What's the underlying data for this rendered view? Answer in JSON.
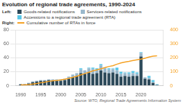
{
  "chart_data": {
    "type": "bar",
    "title": "Evolution of regional trade agreements, 1990-2024",
    "y_label": "Left:",
    "y2_label": "Right:",
    "annotations": [
      "Source: WTO, Regional Trade Agreements Information System"
    ],
    "x": [
      1990,
      1991,
      1992,
      1993,
      1994,
      1995,
      1996,
      1997,
      1998,
      1999,
      2000,
      2001,
      2002,
      2003,
      2004,
      2005,
      2006,
      2007,
      2008,
      2009,
      2010,
      2011,
      2012,
      2013,
      2014,
      2015,
      2016,
      2017,
      2018,
      2019,
      2020,
      2021,
      2022,
      2023,
      2024
    ],
    "series": [
      {
        "name": "Goods-related notifications",
        "color": "#2d4a5a",
        "values": [
          2,
          2,
          3,
          5,
          6,
          7,
          7,
          8,
          7,
          7,
          7,
          8,
          10,
          12,
          14,
          18,
          17,
          19,
          17,
          18,
          22,
          19,
          18,
          19,
          17,
          13,
          14,
          13,
          14,
          14,
          42,
          10,
          9,
          4,
          1
        ]
      },
      {
        "name": "Services-related notifications",
        "color": "#9ab8cc",
        "values": [
          0,
          0,
          1,
          1,
          1,
          1,
          1,
          1,
          2,
          2,
          2,
          2,
          3,
          4,
          4,
          5,
          5,
          6,
          7,
          5,
          7,
          6,
          5,
          5,
          5,
          4,
          4,
          4,
          4,
          3,
          5,
          2,
          2,
          1,
          0
        ]
      },
      {
        "name": "Accessions to a regional trade agreement (RTA)",
        "color": "#5bc8e8",
        "values": [
          0,
          0,
          0,
          0,
          0,
          0,
          0,
          0,
          0,
          0,
          0,
          0,
          0,
          0,
          0,
          2,
          0,
          1,
          2,
          2,
          2,
          1,
          2,
          1,
          4,
          3,
          1,
          2,
          3,
          2,
          1,
          0,
          3,
          3,
          1
        ]
      },
      {
        "name": "Cumulative number of RTAs in force",
        "color": "#f5a020",
        "type": "line",
        "axis": "y2",
        "values": [
          5,
          6,
          8,
          12,
          16,
          21,
          25,
          31,
          35,
          38,
          42,
          47,
          53,
          60,
          68,
          78,
          87,
          96,
          106,
          114,
          121,
          130,
          138,
          144,
          154,
          163,
          170,
          175,
          181,
          186,
          191,
          197,
          206,
          212,
          214
        ]
      }
    ],
    "xlim": [
      1988.8,
      2025.5
    ],
    "xticks": [
      1990,
      1995,
      2000,
      2005,
      2010,
      2015,
      2020
    ],
    "ylim": [
      0,
      80
    ],
    "yticks": [
      0,
      20,
      40,
      60,
      80
    ],
    "y2lim": [
      0,
      400
    ],
    "y2ticks": [
      0,
      100,
      200,
      300,
      400
    ],
    "stacked": true,
    "grid": true
  }
}
